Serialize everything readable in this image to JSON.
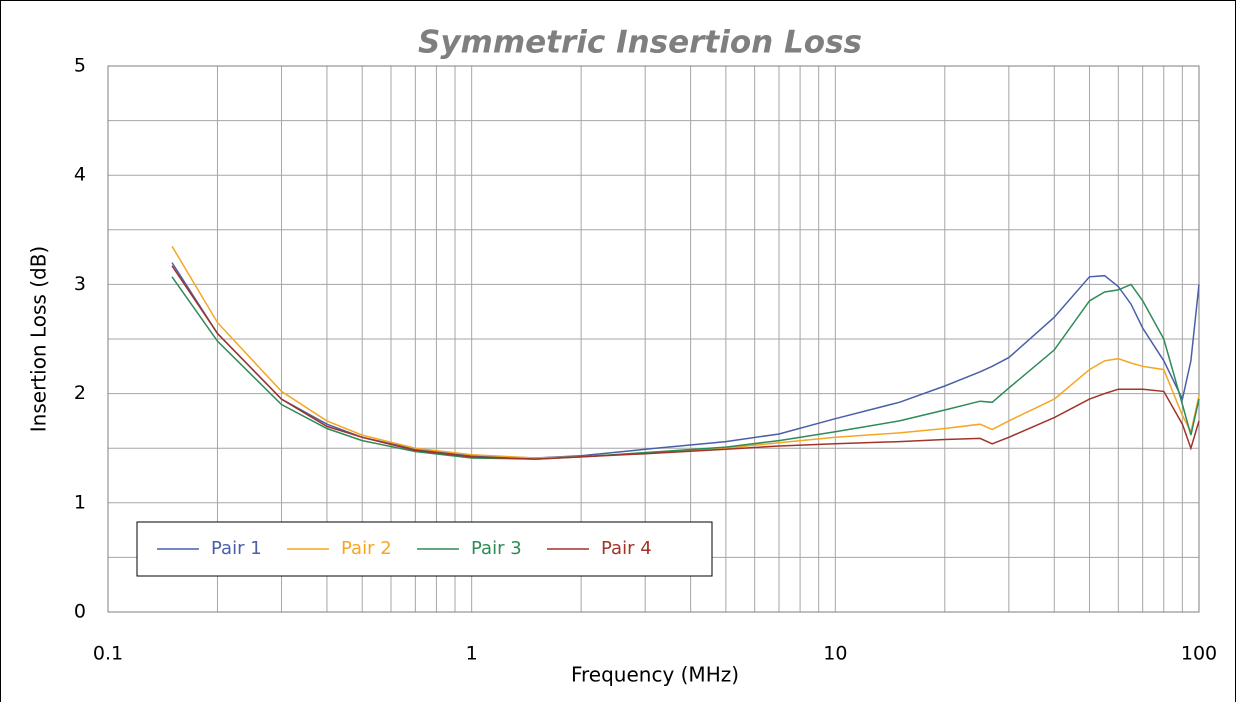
{
  "chart_data": {
    "type": "line",
    "title": "Symmetric Insertion Loss",
    "x_label": "Frequency (MHz)",
    "y_label": "Insertion Loss (dB)",
    "x": [
      0.15,
      0.2,
      0.3,
      0.4,
      0.5,
      0.7,
      1,
      1.5,
      2,
      3,
      5,
      7,
      10,
      15,
      20,
      25,
      27,
      30,
      40,
      50,
      55,
      60,
      65,
      70,
      80,
      90,
      95,
      100
    ],
    "series": [
      {
        "name": "Pair 1",
        "color": "#4a5fa8",
        "values": [
          3.2,
          2.55,
          1.95,
          1.72,
          1.6,
          1.49,
          1.43,
          1.41,
          1.43,
          1.49,
          1.56,
          1.63,
          1.77,
          1.92,
          2.07,
          2.2,
          2.25,
          2.33,
          2.7,
          3.07,
          3.08,
          2.98,
          2.82,
          2.6,
          2.3,
          1.95,
          2.3,
          3.0
        ]
      },
      {
        "name": "Pair 2",
        "color": "#f5a623",
        "values": [
          3.35,
          2.65,
          2.02,
          1.75,
          1.62,
          1.5,
          1.44,
          1.41,
          1.42,
          1.46,
          1.5,
          1.55,
          1.6,
          1.64,
          1.68,
          1.72,
          1.67,
          1.75,
          1.95,
          2.22,
          2.3,
          2.32,
          2.28,
          2.25,
          2.22,
          1.8,
          1.65,
          1.98
        ]
      },
      {
        "name": "Pair 3",
        "color": "#2e8b57",
        "values": [
          3.07,
          2.48,
          1.9,
          1.68,
          1.57,
          1.47,
          1.41,
          1.4,
          1.42,
          1.46,
          1.51,
          1.57,
          1.65,
          1.75,
          1.85,
          1.93,
          1.92,
          2.05,
          2.4,
          2.85,
          2.93,
          2.95,
          3.0,
          2.85,
          2.5,
          1.9,
          1.62,
          1.95
        ]
      },
      {
        "name": "Pair 4",
        "color": "#a0342a",
        "values": [
          3.17,
          2.55,
          1.95,
          1.7,
          1.6,
          1.48,
          1.42,
          1.4,
          1.42,
          1.45,
          1.49,
          1.52,
          1.54,
          1.56,
          1.58,
          1.59,
          1.54,
          1.6,
          1.78,
          1.95,
          2.0,
          2.04,
          2.04,
          2.04,
          2.02,
          1.72,
          1.5,
          1.75
        ]
      }
    ],
    "xlim": [
      0.1,
      100
    ],
    "xticks": [
      0.1,
      1,
      10,
      100
    ],
    "x_log": true,
    "ylim": [
      0,
      5
    ],
    "yticks": [
      0,
      1,
      2,
      3,
      4,
      5
    ],
    "grid": true,
    "minor_grid": true,
    "legend": "lower left"
  }
}
